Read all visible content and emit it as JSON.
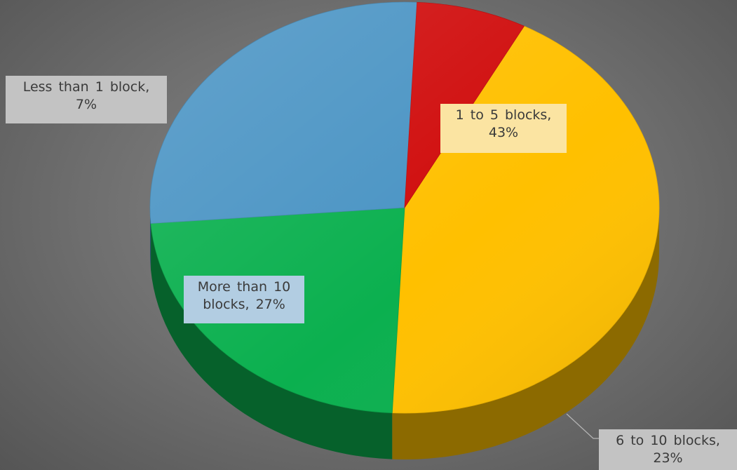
{
  "chart_data": {
    "type": "pie",
    "title": "",
    "slices": [
      {
        "label": "1 to 5 blocks",
        "value": 43,
        "display": "43%",
        "color": "#FFC000"
      },
      {
        "label": "6 to 10 blocks",
        "value": 23,
        "display": "23%",
        "color": "#0BB04F"
      },
      {
        "label": "More than 10 blocks",
        "value": 27,
        "display": "27%",
        "color": "#4A94C4"
      },
      {
        "label": "Less than 1 block",
        "value": 7,
        "display": "7%",
        "color": "#D00C0C"
      }
    ],
    "labels_text": [
      {
        "line1": "1 to 5 blocks,",
        "line2": "43%"
      },
      {
        "line1": "6 to 10 blocks,",
        "line2": "23%"
      },
      {
        "line1": "More than 10",
        "line2": "blocks, 27%"
      },
      {
        "line1": "Less than 1 block,",
        "line2": "7%"
      }
    ],
    "legend": "none",
    "style": "3d-pie"
  }
}
